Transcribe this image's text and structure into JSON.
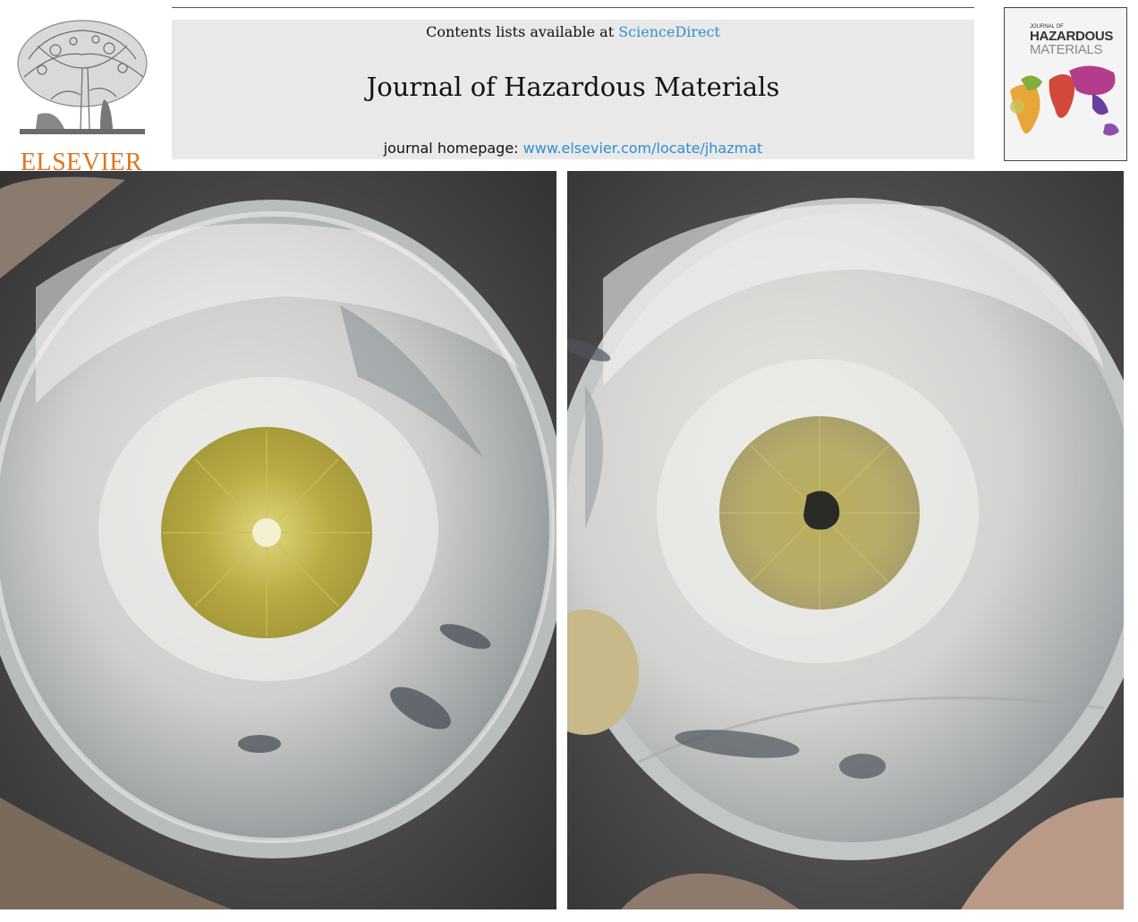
{
  "header": {
    "contents_prefix": "Contents lists available at ",
    "contents_link": "ScienceDirect",
    "journal_title": "Journal of Hazardous Materials",
    "homepage_prefix": "journal homepage: ",
    "homepage_link": "www.elsevier.com/locate/jhazmat"
  },
  "publisher": {
    "name": "ELSEVIER",
    "icon": "elsevier-tree-logo",
    "color": "#e0731f"
  },
  "cover": {
    "line_small": "JOURNAL OF",
    "line_1": "HAZARDOUS",
    "line_2": "MATERIALS"
  },
  "photos": [
    {
      "name": "petri-dish-left",
      "colony": "yellow-radial",
      "center": "light"
    },
    {
      "name": "petri-dish-right",
      "colony": "yellow-radial",
      "center": "dark"
    }
  ],
  "colors": {
    "banner_bg": "#e9e9e9",
    "link": "#2f8fce",
    "colony_yellow": "#b3a63c"
  }
}
